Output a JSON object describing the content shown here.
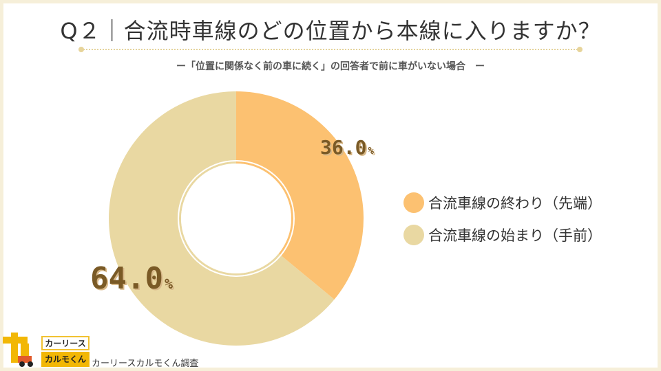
{
  "title": "Q２｜合流時車線のどの位置から本線に入りますか？",
  "subtitle": "ー「位置に関係なく前の車に続く」の回答者で前に車がいない場合　ー",
  "chart_data": {
    "type": "pie",
    "variant": "donut",
    "title": "Q２｜合流時車線のどの位置から本線に入りますか？",
    "subtitle": "ー「位置に関係なく前の車に続く」の回答者で前に車がいない場合　ー",
    "categories": [
      "合流車線の終わり（先端）",
      "合流車線の始まり（手前）"
    ],
    "values": [
      36.0,
      64.0
    ],
    "unit": "%",
    "colors": [
      "#fcc171",
      "#e9d8a2"
    ],
    "legend_position": "right"
  },
  "labels": {
    "slice1_value": "36.0",
    "slice2_value": "64.0",
    "unit": "%"
  },
  "legend": [
    {
      "label": "合流車線の終わり（先端）",
      "color": "#fcc171"
    },
    {
      "label": "合流車線の始まり（手前）",
      "color": "#e9d8a2"
    }
  ],
  "logo": {
    "line1": "カーリース",
    "line2": "カルモくん"
  },
  "source": "カーリースカルモくん調査"
}
